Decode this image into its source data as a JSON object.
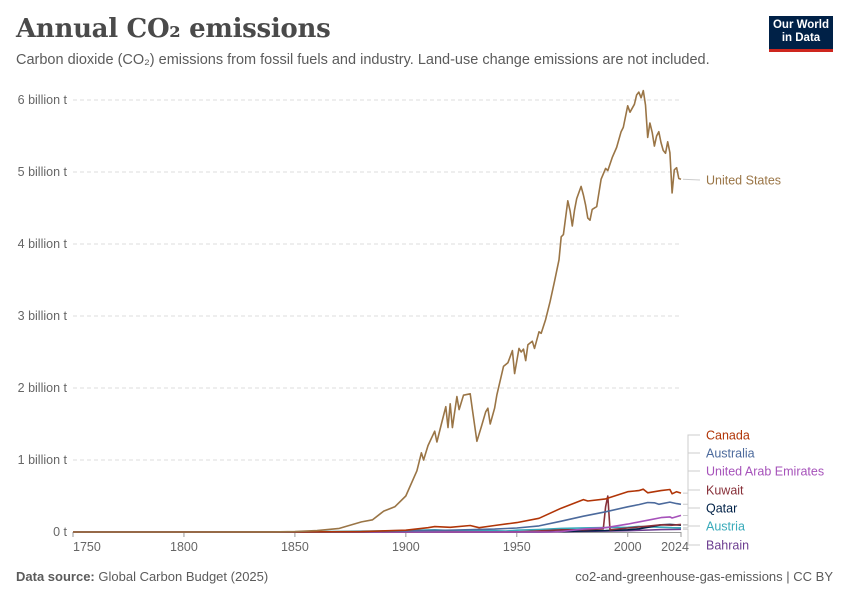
{
  "header": {
    "title": "Annual CO₂ emissions",
    "subtitle": "Carbon dioxide (CO₂) emissions from fossil fuels and industry. Land-use change emissions are not included."
  },
  "logo": {
    "line1": "Our World",
    "line2": "in Data"
  },
  "footer": {
    "source_label": "Data source:",
    "source_value": "Global Carbon Budget (2025)",
    "right_text": "co2-and-greenhouse-gas-emissions | CC BY"
  },
  "colors": {
    "United States": "#9a7546",
    "Canada": "#b13507",
    "Australia": "#4c6a9c",
    "United Arab Emirates": "#a652ba",
    "Kuwait": "#883039",
    "Qatar": "#002147",
    "Austria": "#38aaba",
    "Bahrain": "#6d3e91",
    "gridline": "#dddddd",
    "axis_text": "#666666"
  },
  "chart_data": {
    "type": "line",
    "title": "Annual CO₂ emissions",
    "xlim": [
      1750,
      2024
    ],
    "ylim": [
      0,
      6200000000
    ],
    "x_ticks": [
      1750,
      1800,
      1850,
      1900,
      1950,
      2000,
      2024
    ],
    "y_ticks": [
      {
        "value": 0,
        "label": "0 t"
      },
      {
        "value": 1000000000,
        "label": "1 billion t"
      },
      {
        "value": 2000000000,
        "label": "2 billion t"
      },
      {
        "value": 3000000000,
        "label": "3 billion t"
      },
      {
        "value": 4000000000,
        "label": "4 billion t"
      },
      {
        "value": 5000000000,
        "label": "5 billion t"
      },
      {
        "value": 6000000000,
        "label": "6 billion t"
      }
    ],
    "grid": true,
    "legend": "right (end-of-line labels)",
    "series": [
      {
        "name": "United States",
        "color": "#9a7546",
        "points": [
          [
            1750,
            0
          ],
          [
            1800,
            250000
          ],
          [
            1840,
            1000000
          ],
          [
            1850,
            5400000
          ],
          [
            1860,
            20000000
          ],
          [
            1870,
            50000000
          ],
          [
            1880,
            140000000
          ],
          [
            1885,
            170000000
          ],
          [
            1890,
            290000000
          ],
          [
            1895,
            350000000
          ],
          [
            1900,
            500000000
          ],
          [
            1905,
            850000000
          ],
          [
            1907,
            1100000000
          ],
          [
            1908,
            1000000000
          ],
          [
            1910,
            1200000000
          ],
          [
            1913,
            1400000000
          ],
          [
            1914,
            1250000000
          ],
          [
            1916,
            1500000000
          ],
          [
            1918,
            1740000000
          ],
          [
            1919,
            1450000000
          ],
          [
            1920,
            1780000000
          ],
          [
            1921,
            1450000000
          ],
          [
            1923,
            1880000000
          ],
          [
            1924,
            1700000000
          ],
          [
            1926,
            1900000000
          ],
          [
            1929,
            1920000000
          ],
          [
            1930,
            1700000000
          ],
          [
            1932,
            1260000000
          ],
          [
            1934,
            1460000000
          ],
          [
            1936,
            1670000000
          ],
          [
            1937,
            1720000000
          ],
          [
            1938,
            1500000000
          ],
          [
            1940,
            1720000000
          ],
          [
            1941,
            1900000000
          ],
          [
            1944,
            2300000000
          ],
          [
            1946,
            2350000000
          ],
          [
            1948,
            2520000000
          ],
          [
            1949,
            2200000000
          ],
          [
            1951,
            2550000000
          ],
          [
            1952,
            2500000000
          ],
          [
            1953,
            2540000000
          ],
          [
            1954,
            2380000000
          ],
          [
            1955,
            2600000000
          ],
          [
            1957,
            2650000000
          ],
          [
            1958,
            2550000000
          ],
          [
            1960,
            2780000000
          ],
          [
            1961,
            2760000000
          ],
          [
            1963,
            2950000000
          ],
          [
            1965,
            3200000000
          ],
          [
            1967,
            3480000000
          ],
          [
            1969,
            3780000000
          ],
          [
            1970,
            4100000000
          ],
          [
            1971,
            4130000000
          ],
          [
            1973,
            4600000000
          ],
          [
            1974,
            4460000000
          ],
          [
            1975,
            4250000000
          ],
          [
            1976,
            4470000000
          ],
          [
            1977,
            4630000000
          ],
          [
            1979,
            4800000000
          ],
          [
            1980,
            4680000000
          ],
          [
            1981,
            4540000000
          ],
          [
            1982,
            4360000000
          ],
          [
            1983,
            4330000000
          ],
          [
            1984,
            4480000000
          ],
          [
            1986,
            4520000000
          ],
          [
            1988,
            4900000000
          ],
          [
            1990,
            5050000000
          ],
          [
            1991,
            5020000000
          ],
          [
            1993,
            5200000000
          ],
          [
            1995,
            5340000000
          ],
          [
            1997,
            5560000000
          ],
          [
            1998,
            5620000000
          ],
          [
            2000,
            5920000000
          ],
          [
            2001,
            5830000000
          ],
          [
            2003,
            5940000000
          ],
          [
            2004,
            6070000000
          ],
          [
            2005,
            6110000000
          ],
          [
            2006,
            6030000000
          ],
          [
            2007,
            6130000000
          ],
          [
            2008,
            5930000000
          ],
          [
            2009,
            5480000000
          ],
          [
            2010,
            5680000000
          ],
          [
            2011,
            5550000000
          ],
          [
            2012,
            5360000000
          ],
          [
            2013,
            5500000000
          ],
          [
            2014,
            5560000000
          ],
          [
            2015,
            5410000000
          ],
          [
            2016,
            5300000000
          ],
          [
            2017,
            5260000000
          ],
          [
            2018,
            5420000000
          ],
          [
            2019,
            5270000000
          ],
          [
            2020,
            4710000000
          ],
          [
            2021,
            5030000000
          ],
          [
            2022,
            5060000000
          ],
          [
            2023,
            4910000000
          ],
          [
            2024,
            4900000000
          ]
        ]
      },
      {
        "name": "Canada",
        "color": "#b13507",
        "points": [
          [
            1750,
            0
          ],
          [
            1850,
            0
          ],
          [
            1880,
            5000000
          ],
          [
            1900,
            25000000
          ],
          [
            1910,
            60000000
          ],
          [
            1913,
            75000000
          ],
          [
            1920,
            65000000
          ],
          [
            1929,
            90000000
          ],
          [
            1933,
            60000000
          ],
          [
            1940,
            90000000
          ],
          [
            1950,
            130000000
          ],
          [
            1960,
            190000000
          ],
          [
            1970,
            330000000
          ],
          [
            1980,
            450000000
          ],
          [
            1982,
            430000000
          ],
          [
            1990,
            460000000
          ],
          [
            2000,
            560000000
          ],
          [
            2005,
            575000000
          ],
          [
            2007,
            595000000
          ],
          [
            2009,
            545000000
          ],
          [
            2015,
            575000000
          ],
          [
            2019,
            590000000
          ],
          [
            2020,
            530000000
          ],
          [
            2022,
            560000000
          ],
          [
            2024,
            540000000
          ]
        ]
      },
      {
        "name": "Australia",
        "color": "#4c6a9c",
        "points": [
          [
            1750,
            0
          ],
          [
            1850,
            0
          ],
          [
            1870,
            1000000
          ],
          [
            1900,
            15000000
          ],
          [
            1920,
            25000000
          ],
          [
            1940,
            40000000
          ],
          [
            1950,
            55000000
          ],
          [
            1960,
            85000000
          ],
          [
            1970,
            150000000
          ],
          [
            1980,
            220000000
          ],
          [
            1990,
            280000000
          ],
          [
            2000,
            350000000
          ],
          [
            2005,
            380000000
          ],
          [
            2009,
            410000000
          ],
          [
            2012,
            405000000
          ],
          [
            2014,
            385000000
          ],
          [
            2019,
            415000000
          ],
          [
            2022,
            395000000
          ],
          [
            2024,
            385000000
          ]
        ]
      },
      {
        "name": "United Arab Emirates",
        "color": "#a652ba",
        "points": [
          [
            1750,
            0
          ],
          [
            1960,
            0
          ],
          [
            1965,
            500000
          ],
          [
            1970,
            5000000
          ],
          [
            1980,
            40000000
          ],
          [
            1990,
            60000000
          ],
          [
            2000,
            110000000
          ],
          [
            2010,
            170000000
          ],
          [
            2015,
            200000000
          ],
          [
            2019,
            210000000
          ],
          [
            2020,
            195000000
          ],
          [
            2024,
            230000000
          ]
        ]
      },
      {
        "name": "Kuwait",
        "color": "#883039",
        "points": [
          [
            1750,
            0
          ],
          [
            1945,
            0
          ],
          [
            1950,
            2000000
          ],
          [
            1960,
            15000000
          ],
          [
            1970,
            30000000
          ],
          [
            1980,
            30000000
          ],
          [
            1989,
            45000000
          ],
          [
            1990,
            350000000
          ],
          [
            1991,
            500000000
          ],
          [
            1992,
            30000000
          ],
          [
            2000,
            55000000
          ],
          [
            2010,
            85000000
          ],
          [
            2015,
            100000000
          ],
          [
            2020,
            95000000
          ],
          [
            2024,
            105000000
          ]
        ]
      },
      {
        "name": "Qatar",
        "color": "#002147",
        "points": [
          [
            1750,
            0
          ],
          [
            1950,
            0
          ],
          [
            1960,
            2000000
          ],
          [
            1970,
            5000000
          ],
          [
            1980,
            15000000
          ],
          [
            1990,
            20000000
          ],
          [
            2000,
            30000000
          ],
          [
            2005,
            45000000
          ],
          [
            2010,
            70000000
          ],
          [
            2015,
            100000000
          ],
          [
            2019,
            105000000
          ],
          [
            2024,
            95000000
          ]
        ]
      },
      {
        "name": "Austria",
        "color": "#38aaba",
        "points": [
          [
            1750,
            0
          ],
          [
            1850,
            1000000
          ],
          [
            1870,
            8000000
          ],
          [
            1900,
            20000000
          ],
          [
            1913,
            30000000
          ],
          [
            1920,
            20000000
          ],
          [
            1930,
            25000000
          ],
          [
            1945,
            12000000
          ],
          [
            1950,
            25000000
          ],
          [
            1960,
            35000000
          ],
          [
            1970,
            50000000
          ],
          [
            1980,
            57000000
          ],
          [
            1990,
            62000000
          ],
          [
            2000,
            65000000
          ],
          [
            2005,
            78000000
          ],
          [
            2010,
            71000000
          ],
          [
            2015,
            66000000
          ],
          [
            2020,
            60000000
          ],
          [
            2024,
            58000000
          ]
        ]
      },
      {
        "name": "Bahrain",
        "color": "#6d3e91",
        "points": [
          [
            1750,
            0
          ],
          [
            1930,
            0
          ],
          [
            1940,
            1000000
          ],
          [
            1960,
            3000000
          ],
          [
            1970,
            5000000
          ],
          [
            1980,
            10000000
          ],
          [
            1990,
            13000000
          ],
          [
            2000,
            18000000
          ],
          [
            2010,
            28000000
          ],
          [
            2015,
            33000000
          ],
          [
            2020,
            35000000
          ],
          [
            2024,
            38000000
          ]
        ]
      }
    ]
  }
}
